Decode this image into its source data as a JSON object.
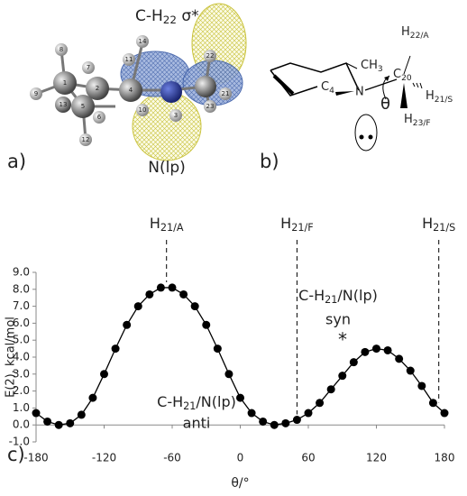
{
  "panel_a": {
    "label": "a)",
    "orbital_top": {
      "main": "C-H",
      "sub": "22",
      "rest": " σ*"
    },
    "orbital_bottom": "N(lp)",
    "atoms": [
      "8",
      "7",
      "1",
      "2",
      "9",
      "13",
      "5",
      "6",
      "12",
      "4",
      "11",
      "14",
      "10",
      "3",
      "23",
      "22",
      "21"
    ]
  },
  "panel_b": {
    "label": "b)",
    "ch3": {
      "main": "CH",
      "sub": "3"
    },
    "h22": {
      "main": "H",
      "sub": "22/A"
    },
    "c20": {
      "main": "C",
      "sub": "20"
    },
    "h21": {
      "main": "H",
      "sub": "21/S"
    },
    "c4": {
      "main": "C",
      "sub": "4"
    },
    "n": "N",
    "theta": "θ",
    "h23": {
      "main": "H",
      "sub": "23/F"
    }
  },
  "chart_data": {
    "type": "line",
    "panel_label": "c)",
    "xlabel": "θ/°",
    "ylabel": "E(2), kcal/mol",
    "color": "#000000",
    "x": [
      -180,
      -170,
      -160,
      -150,
      -140,
      -130,
      -120,
      -110,
      -100,
      -90,
      -80,
      -70,
      -60,
      -50,
      -40,
      -30,
      -20,
      -10,
      0,
      10,
      20,
      30,
      40,
      50,
      60,
      70,
      80,
      90,
      100,
      110,
      120,
      130,
      140,
      150,
      160,
      170,
      180
    ],
    "values": [
      0.7,
      0.2,
      0.0,
      0.1,
      0.6,
      1.6,
      3.0,
      4.5,
      5.9,
      7.0,
      7.7,
      8.1,
      8.1,
      7.7,
      7.0,
      5.9,
      4.5,
      3.0,
      1.6,
      0.7,
      0.2,
      0.0,
      0.1,
      0.3,
      0.7,
      1.3,
      2.1,
      2.9,
      3.7,
      4.3,
      4.5,
      4.4,
      3.9,
      3.2,
      2.3,
      1.3,
      0.7
    ],
    "xlim": [
      -180,
      180
    ],
    "ylim": [
      -1,
      9
    ],
    "xticks": [
      -180,
      -120,
      -60,
      0,
      60,
      120,
      180
    ],
    "yticks": [
      {
        "value": -1,
        "label": "-1.0"
      },
      {
        "value": 0,
        "label": "0.0"
      },
      {
        "value": 1,
        "label": "1.0"
      },
      {
        "value": 2,
        "label": "2.0"
      },
      {
        "value": 3,
        "label": "3.0"
      },
      {
        "value": 4,
        "label": "4.0"
      },
      {
        "value": 5,
        "label": "5.0"
      },
      {
        "value": 6,
        "label": "6.0"
      },
      {
        "value": 7,
        "label": "7.0"
      },
      {
        "value": 8,
        "label": "8.0"
      },
      {
        "value": 9,
        "label": "9.0"
      }
    ],
    "markers": [
      {
        "x": -65,
        "label": {
          "main": "H",
          "sub": "21/A"
        }
      },
      {
        "x": 50,
        "label": {
          "main": "H",
          "sub": "21/F"
        }
      },
      {
        "x": 175,
        "label": {
          "main": "H",
          "sub": "21/S"
        }
      }
    ],
    "annotations": {
      "syn": {
        "main": "C-H",
        "sub": "21",
        "rest": "/N(lp)",
        "line2": "syn",
        "mark": "*"
      },
      "anti": {
        "main": "C-H",
        "sub": "21",
        "rest": "/N(lp)",
        "line2": "anti"
      }
    }
  }
}
